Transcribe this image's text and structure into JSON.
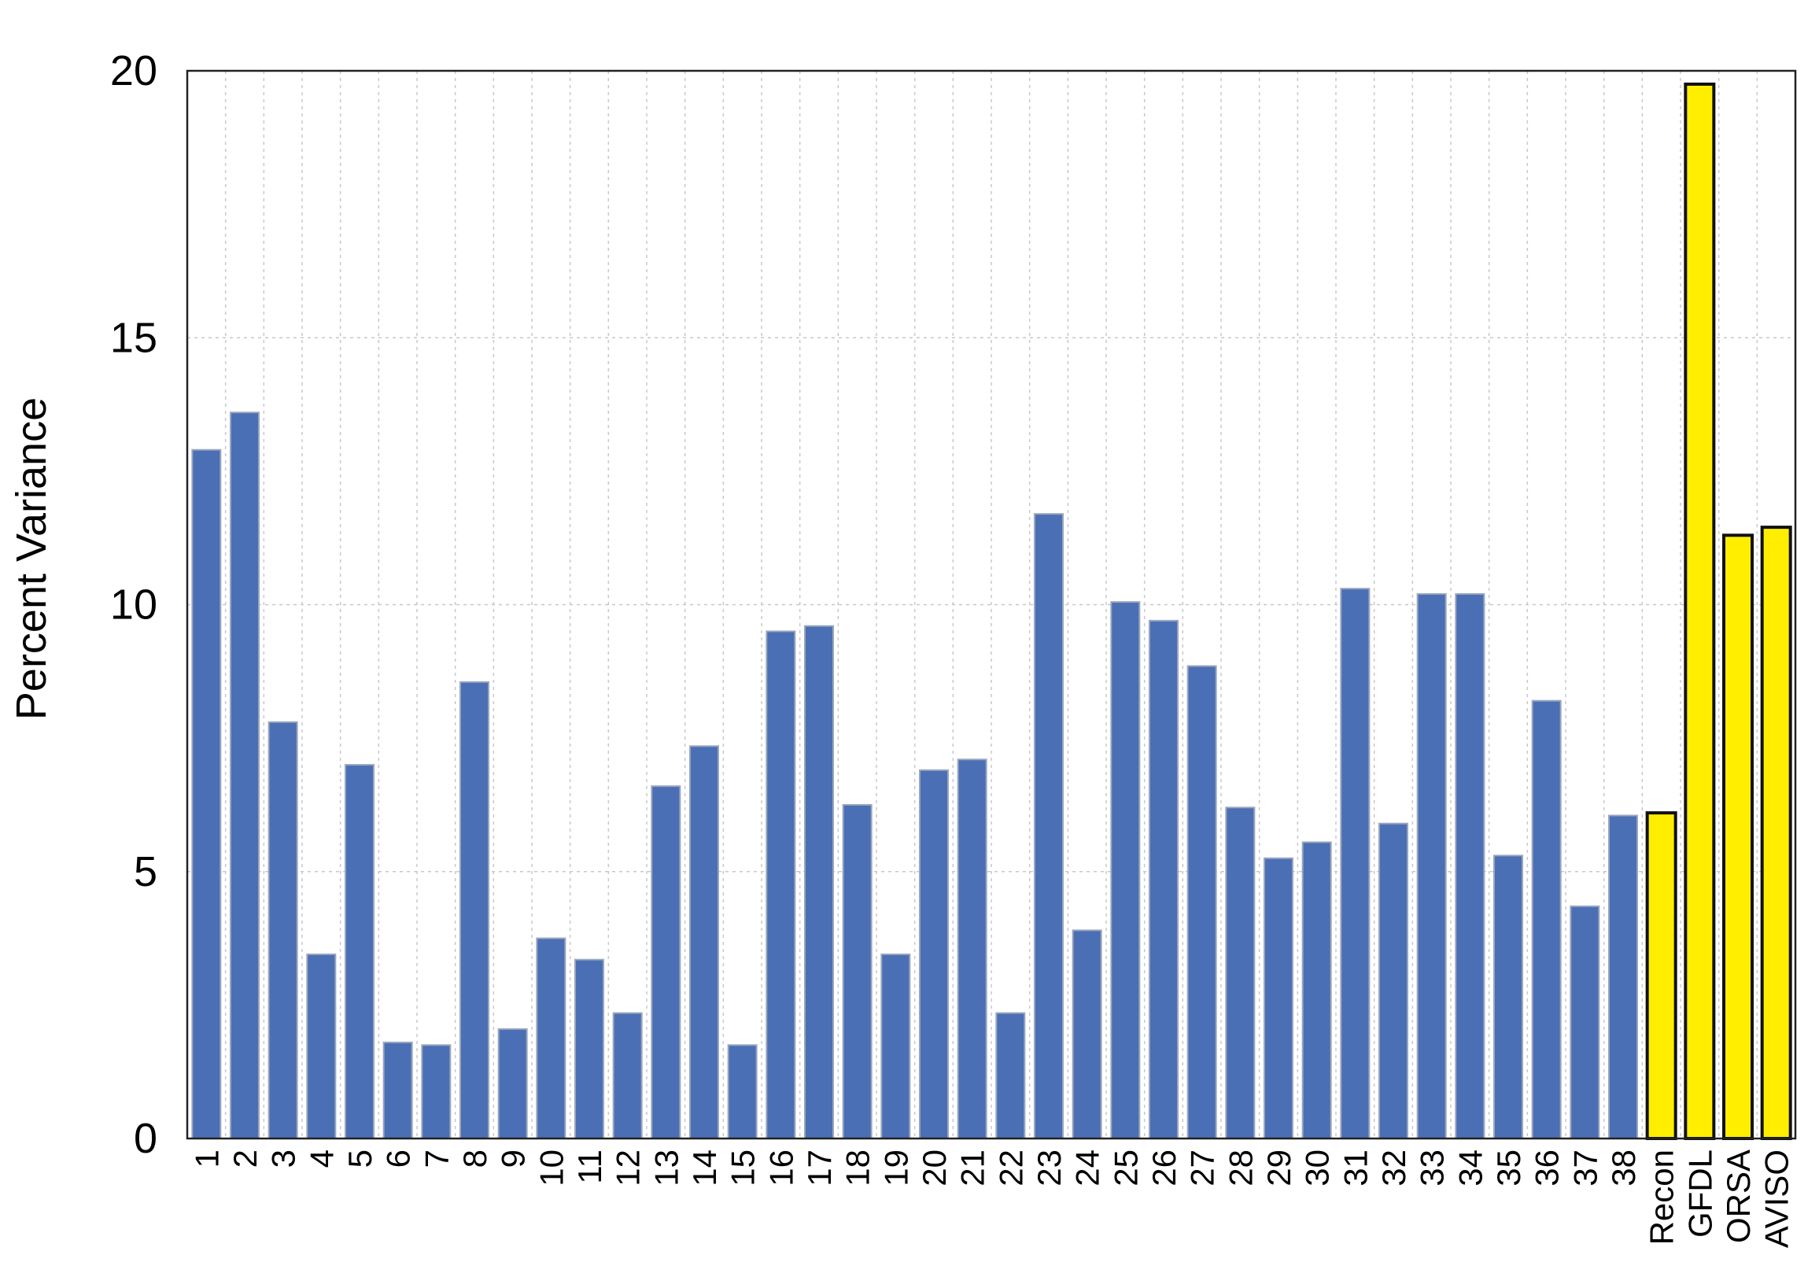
{
  "chart_data": {
    "type": "bar",
    "title": "",
    "xlabel": "",
    "ylabel": "Percent Variance",
    "ylim": [
      0,
      20
    ],
    "yticks": [
      "0",
      "5",
      "10",
      "15",
      "20"
    ],
    "grid": true,
    "categories": [
      "1",
      "2",
      "3",
      "4",
      "5",
      "6",
      "7",
      "8",
      "9",
      "10",
      "11",
      "12",
      "13",
      "14",
      "15",
      "16",
      "17",
      "18",
      "19",
      "20",
      "21",
      "22",
      "23",
      "24",
      "25",
      "26",
      "27",
      "28",
      "29",
      "30",
      "31",
      "32",
      "33",
      "34",
      "35",
      "36",
      "37",
      "38",
      "Recon",
      "GFDL",
      "ORSA",
      "AVISO"
    ],
    "values": [
      12.9,
      13.6,
      7.8,
      3.45,
      7.0,
      1.8,
      1.75,
      8.55,
      2.05,
      3.75,
      3.35,
      2.35,
      6.6,
      7.35,
      1.75,
      9.5,
      9.6,
      6.25,
      3.45,
      6.9,
      7.1,
      2.35,
      11.7,
      3.9,
      10.05,
      9.7,
      8.85,
      6.2,
      5.25,
      5.55,
      10.3,
      5.9,
      10.2,
      10.2,
      5.3,
      8.2,
      4.35,
      6.05,
      6.1,
      19.75,
      11.3,
      11.45
    ],
    "colors": {
      "model": "#4a6fb5",
      "observation": "#ffee00",
      "observation_border": "#111111",
      "grid": "#c8c8c8",
      "axis": "#222222"
    },
    "highlighted_categories": [
      "Recon",
      "GFDL",
      "ORSA",
      "AVISO"
    ]
  }
}
